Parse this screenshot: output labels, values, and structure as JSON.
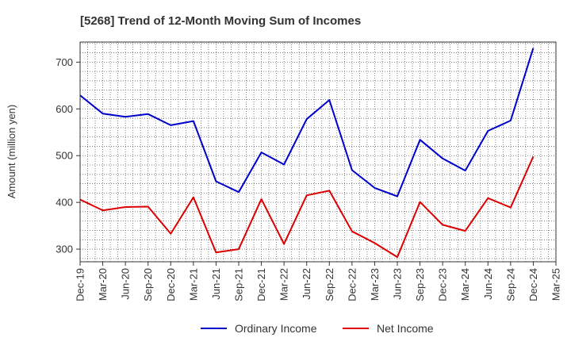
{
  "chart_data": {
    "type": "line",
    "title": "[5268]  Trend of 12-Month Moving Sum of Incomes",
    "xlabel": "",
    "ylabel": "Amount (million yen)",
    "ylim": [
      273,
      743
    ],
    "yticks": [
      300,
      400,
      500,
      600,
      700
    ],
    "grid": true,
    "legend_position": "bottom",
    "categories": [
      "Dec-19",
      "Mar-20",
      "Jun-20",
      "Sep-20",
      "Dec-20",
      "Mar-21",
      "Jun-21",
      "Sep-21",
      "Dec-21",
      "Mar-22",
      "Jun-22",
      "Sep-22",
      "Dec-22",
      "Mar-23",
      "Jun-23",
      "Sep-23",
      "Dec-23",
      "Mar-24",
      "Jun-24",
      "Sep-24",
      "Dec-24",
      "Mar-25"
    ],
    "series": [
      {
        "name": "Ordinary Income",
        "color": "#0000cc",
        "values": [
          629,
          590,
          583,
          589,
          565,
          574,
          445,
          422,
          507,
          481,
          578,
          619,
          469,
          431,
          413,
          534,
          494,
          468,
          553,
          575,
          730,
          null
        ]
      },
      {
        "name": "Net Income",
        "color": "#dd0000",
        "values": [
          406,
          383,
          390,
          391,
          333,
          411,
          293,
          300,
          407,
          311,
          415,
          425,
          338,
          313,
          283,
          401,
          352,
          339,
          409,
          389,
          498,
          null
        ]
      }
    ]
  }
}
